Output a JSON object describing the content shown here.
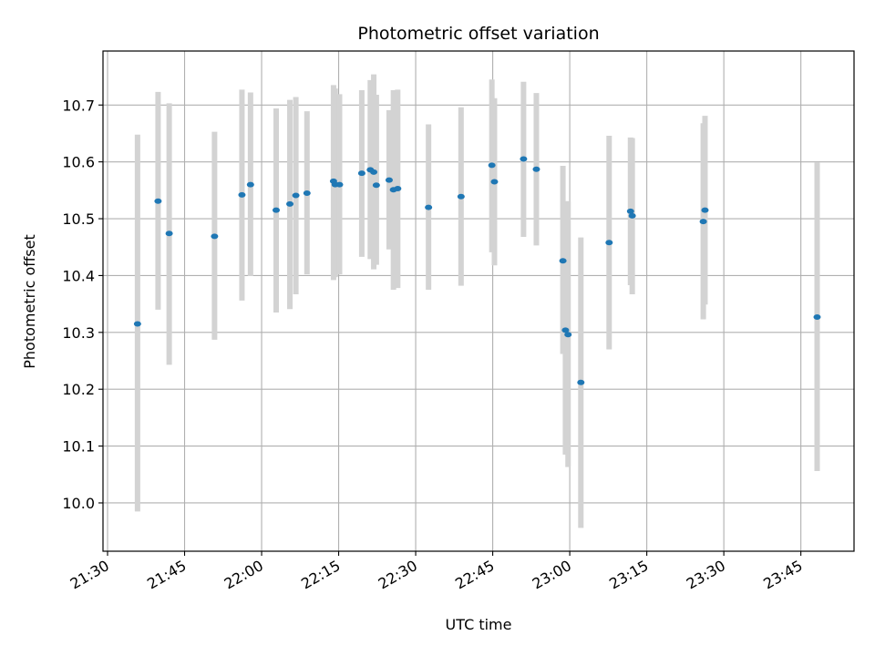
{
  "chart_data": {
    "type": "scatter",
    "title": "Photometric offset variation",
    "xlabel": "UTC time",
    "ylabel": "Photometric offset",
    "x_ticks": [
      "21:30",
      "21:45",
      "22:00",
      "22:15",
      "22:30",
      "22:45",
      "23:00",
      "23:15",
      "23:30",
      "23:45"
    ],
    "y_ticks": [
      "10.0",
      "10.1",
      "10.2",
      "10.3",
      "10.4",
      "10.5",
      "10.6",
      "10.7"
    ],
    "xlim": [
      "21:30",
      "23:55"
    ],
    "ylim": [
      9.915,
      10.795
    ],
    "grid": true,
    "point_color": "#1f77b4",
    "errorbar_color": "#d3d3d3",
    "points": [
      {
        "t": "21:35:50",
        "y": 10.315,
        "lo": 9.985,
        "hi": 10.648
      },
      {
        "t": "21:39:50",
        "y": 10.531,
        "lo": 10.34,
        "hi": 10.723
      },
      {
        "t": "21:42:00",
        "y": 10.474,
        "lo": 10.243,
        "hi": 10.703
      },
      {
        "t": "21:50:50",
        "y": 10.469,
        "lo": 10.287,
        "hi": 10.653
      },
      {
        "t": "21:56:10",
        "y": 10.542,
        "lo": 10.356,
        "hi": 10.727
      },
      {
        "t": "21:57:50",
        "y": 10.56,
        "lo": 10.399,
        "hi": 10.722
      },
      {
        "t": "22:02:50",
        "y": 10.515,
        "lo": 10.335,
        "hi": 10.694
      },
      {
        "t": "22:05:30",
        "y": 10.526,
        "lo": 10.341,
        "hi": 10.709
      },
      {
        "t": "22:06:40",
        "y": 10.541,
        "lo": 10.367,
        "hi": 10.714
      },
      {
        "t": "22:08:50",
        "y": 10.545,
        "lo": 10.402,
        "hi": 10.689
      },
      {
        "t": "22:14:00",
        "y": 10.566,
        "lo": 10.392,
        "hi": 10.735
      },
      {
        "t": "22:14:20",
        "y": 10.56,
        "lo": 10.397,
        "hi": 10.729
      },
      {
        "t": "22:15:10",
        "y": 10.56,
        "lo": 10.402,
        "hi": 10.719
      },
      {
        "t": "22:19:30",
        "y": 10.58,
        "lo": 10.433,
        "hi": 10.726
      },
      {
        "t": "22:21:10",
        "y": 10.586,
        "lo": 10.429,
        "hi": 10.744
      },
      {
        "t": "22:21:50",
        "y": 10.582,
        "lo": 10.411,
        "hi": 10.754
      },
      {
        "t": "22:22:20",
        "y": 10.559,
        "lo": 10.419,
        "hi": 10.718
      },
      {
        "t": "22:24:50",
        "y": 10.568,
        "lo": 10.446,
        "hi": 10.691
      },
      {
        "t": "22:25:40",
        "y": 10.551,
        "lo": 10.375,
        "hi": 10.726
      },
      {
        "t": "22:26:30",
        "y": 10.553,
        "lo": 10.378,
        "hi": 10.727
      },
      {
        "t": "22:32:30",
        "y": 10.52,
        "lo": 10.375,
        "hi": 10.666
      },
      {
        "t": "22:38:50",
        "y": 10.539,
        "lo": 10.382,
        "hi": 10.696
      },
      {
        "t": "22:44:50",
        "y": 10.594,
        "lo": 10.441,
        "hi": 10.745
      },
      {
        "t": "22:45:20",
        "y": 10.565,
        "lo": 10.418,
        "hi": 10.712
      },
      {
        "t": "22:51:00",
        "y": 10.605,
        "lo": 10.468,
        "hi": 10.741
      },
      {
        "t": "22:53:30",
        "y": 10.587,
        "lo": 10.453,
        "hi": 10.721
      },
      {
        "t": "22:58:40",
        "y": 10.426,
        "lo": 10.262,
        "hi": 10.593
      },
      {
        "t": "22:59:10",
        "y": 10.304,
        "lo": 10.085,
        "hi": 10.521
      },
      {
        "t": "22:59:40",
        "y": 10.296,
        "lo": 10.063,
        "hi": 10.531
      },
      {
        "t": "23:02:10",
        "y": 10.212,
        "lo": 9.956,
        "hi": 10.467
      },
      {
        "t": "23:07:40",
        "y": 10.458,
        "lo": 10.27,
        "hi": 10.646
      },
      {
        "t": "23:11:50",
        "y": 10.513,
        "lo": 10.383,
        "hi": 10.643
      },
      {
        "t": "23:12:10",
        "y": 10.505,
        "lo": 10.367,
        "hi": 10.642
      },
      {
        "t": "23:26:00",
        "y": 10.495,
        "lo": 10.323,
        "hi": 10.668
      },
      {
        "t": "23:26:20",
        "y": 10.515,
        "lo": 10.349,
        "hi": 10.681
      },
      {
        "t": "23:48:10",
        "y": 10.327,
        "lo": 10.056,
        "hi": 10.599
      }
    ]
  }
}
